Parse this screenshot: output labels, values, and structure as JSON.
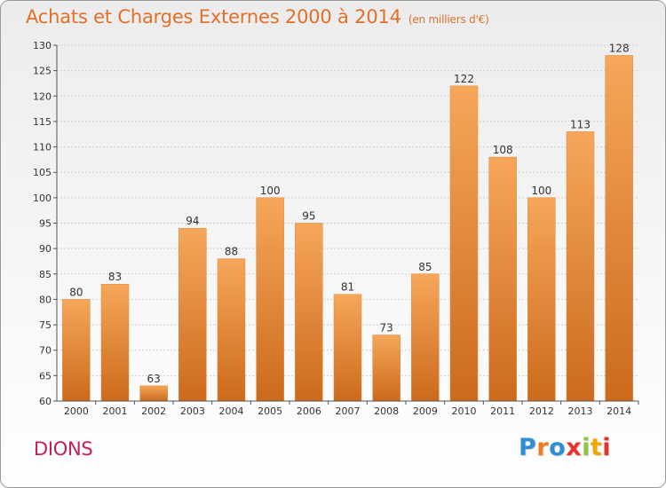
{
  "title": "Achats et Charges Externes 2000 à 2014",
  "unit": "(en milliers d'€)",
  "place": "DIONS",
  "logo": {
    "text": "Proxiti",
    "colors": [
      "#2d8fd6",
      "#ee7d22",
      "#2d8fd6",
      "#e8332a",
      "#8cc63f",
      "#f0a800",
      "#e8332a"
    ]
  },
  "colors": {
    "bar_top": "#f6a75a",
    "bar_bottom": "#cc6a1c",
    "title": "#e0702a",
    "place": "#c21f5b"
  },
  "chart_data": {
    "type": "bar",
    "categories": [
      "2000",
      "2001",
      "2002",
      "2003",
      "2004",
      "2005",
      "2006",
      "2007",
      "2008",
      "2009",
      "2010",
      "2011",
      "2012",
      "2013",
      "2014"
    ],
    "values": [
      80,
      83,
      63,
      94,
      88,
      100,
      95,
      81,
      73,
      85,
      122,
      108,
      100,
      113,
      128
    ],
    "title": "Achats et Charges Externes 2000 à 2014",
    "ylim": [
      60,
      130
    ],
    "yticks": [
      60,
      65,
      70,
      75,
      80,
      85,
      90,
      95,
      100,
      105,
      110,
      115,
      120,
      125,
      130
    ],
    "grid": true,
    "data_labels": true
  }
}
